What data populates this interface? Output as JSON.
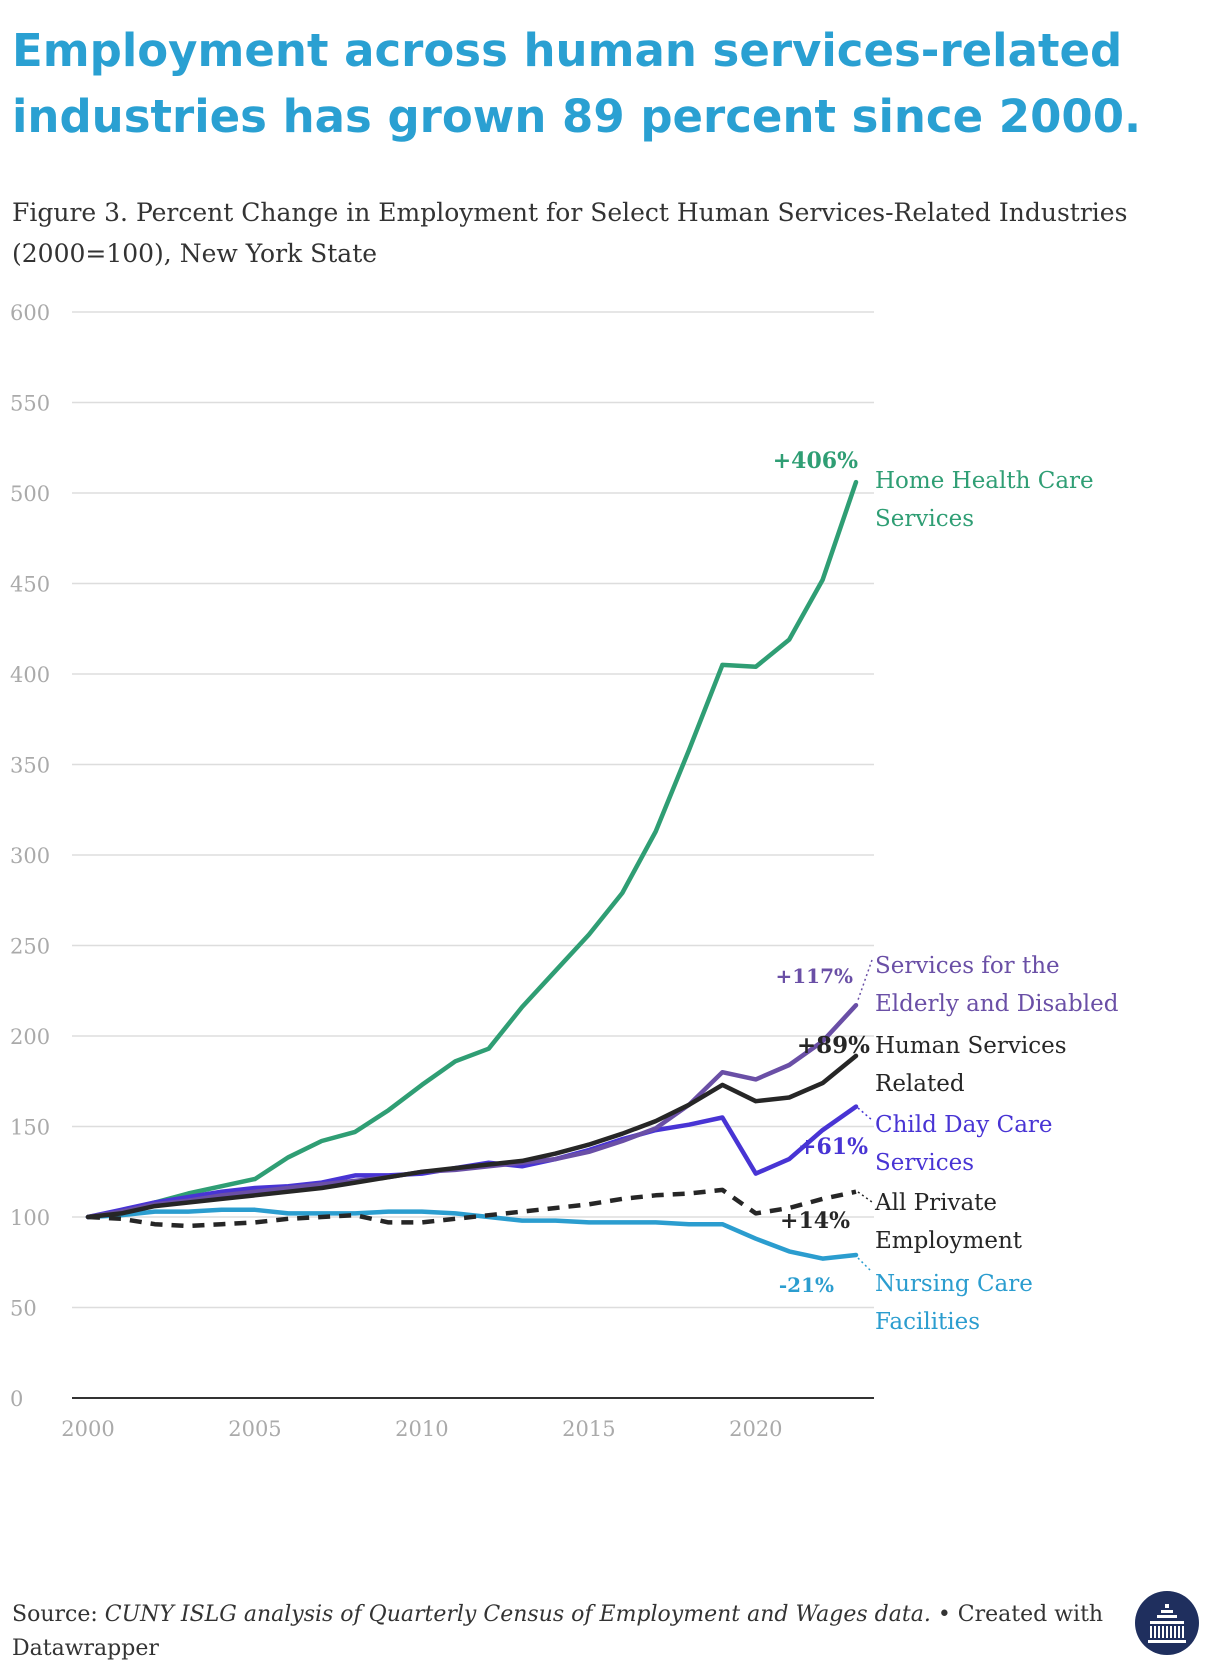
{
  "headline": "Employment across human services-related industries has grown 89 percent since 2000.",
  "subtitle": "Figure 3. Percent Change in Employment for Select Human Services-Related Industries (2000=100), New York State",
  "footer": {
    "source_label": "Source: ",
    "source_text": "CUNY ISLG analysis of Quarterly Census of Employment and Wages data.",
    "credit": " • Created with Datawrapper"
  },
  "colors": {
    "home_health": "#2f9e74",
    "elderly": "#6a4fa6",
    "human_services": "#262626",
    "child_care": "#4834d4",
    "private": "#262626",
    "nursing": "#2b9dcf",
    "grid": "#dddddd",
    "axis_label": "#aaaaaa",
    "headline": "#2aa0d2"
  },
  "logo_icon": "institution-building-icon",
  "chart_data": {
    "type": "line",
    "x": [
      2000,
      2001,
      2002,
      2003,
      2004,
      2005,
      2006,
      2007,
      2008,
      2009,
      2010,
      2011,
      2012,
      2013,
      2014,
      2015,
      2016,
      2017,
      2018,
      2019,
      2020,
      2021,
      2022,
      2023
    ],
    "xticks": [
      "2000",
      "2005",
      "2010",
      "2015",
      "2020"
    ],
    "yticks": [
      "0",
      "50",
      "100",
      "150",
      "200",
      "250",
      "300",
      "350",
      "400",
      "450",
      "500",
      "550",
      "600"
    ],
    "ylim": [
      0,
      600
    ],
    "xlim": [
      2000,
      2023
    ],
    "grid": true,
    "series": [
      {
        "name": "Home Health Care Services",
        "color_key": "home_health",
        "dashed": false,
        "change_label": "+406%",
        "values": [
          100,
          103,
          108,
          113,
          117,
          121,
          133,
          142,
          147,
          159,
          173,
          186,
          193,
          216,
          236,
          256,
          279,
          313,
          358,
          405,
          404,
          419,
          452,
          506
        ]
      },
      {
        "name": "Services for the Elderly and Disabled",
        "color_key": "elderly",
        "dashed": false,
        "change_label": "+117%",
        "values": [
          100,
          103,
          107,
          109,
          112,
          114,
          116,
          118,
          120,
          122,
          125,
          126,
          128,
          130,
          132,
          136,
          142,
          149,
          162,
          180,
          176,
          184,
          197,
          217
        ]
      },
      {
        "name": "Human Services Related",
        "color_key": "human_services",
        "dashed": false,
        "change_label": "+89%",
        "values": [
          100,
          102,
          106,
          108,
          110,
          112,
          114,
          116,
          119,
          122,
          125,
          127,
          129,
          131,
          135,
          140,
          146,
          153,
          162,
          173,
          164,
          166,
          174,
          189
        ]
      },
      {
        "name": "Child Day Care Services",
        "color_key": "child_care",
        "dashed": false,
        "change_label": "+61%",
        "values": [
          100,
          104,
          108,
          111,
          114,
          116,
          117,
          119,
          123,
          123,
          124,
          127,
          130,
          128,
          132,
          137,
          143,
          148,
          151,
          155,
          124,
          132,
          148,
          161
        ]
      },
      {
        "name": "All Private Employment",
        "color_key": "private",
        "dashed": true,
        "change_label": "+14%",
        "values": [
          100,
          99,
          96,
          95,
          96,
          97,
          99,
          100,
          101,
          97,
          97,
          99,
          101,
          103,
          105,
          107,
          110,
          112,
          113,
          115,
          102,
          105,
          110,
          114
        ]
      },
      {
        "name": "Nursing Care Facilities",
        "color_key": "nursing",
        "dashed": false,
        "change_label": "-21%",
        "values": [
          100,
          101,
          103,
          103,
          104,
          104,
          102,
          102,
          102,
          103,
          103,
          102,
          100,
          98,
          98,
          97,
          97,
          97,
          96,
          96,
          88,
          81,
          77,
          79
        ]
      }
    ],
    "series_labels": [
      {
        "key": "home_health",
        "color_key": "home_health",
        "lines": [
          "Home Health Care",
          "Services"
        ]
      },
      {
        "key": "elderly",
        "color_key": "elderly",
        "lines": [
          "Services for the",
          "Elderly and Disabled"
        ]
      },
      {
        "key": "human_services",
        "color_key": "human_services",
        "lines": [
          "Human Services",
          "Related"
        ]
      },
      {
        "key": "child_care",
        "color_key": "child_care",
        "lines": [
          "Child Day Care",
          "Services"
        ]
      },
      {
        "key": "private",
        "color_key": "private",
        "lines": [
          "All Private",
          "Employment"
        ]
      },
      {
        "key": "nursing",
        "color_key": "nursing",
        "lines": [
          "Nursing Care",
          "Facilities"
        ]
      }
    ]
  }
}
